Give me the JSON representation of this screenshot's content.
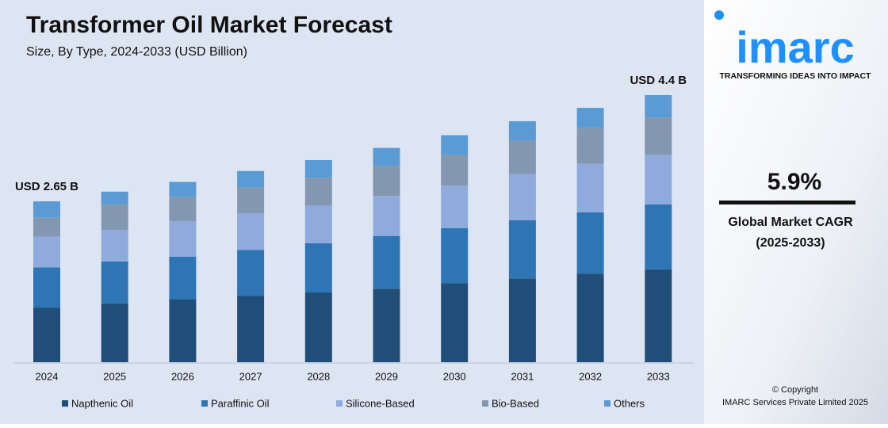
{
  "chart_data": {
    "type": "stacked_bar",
    "title": "Transformer Oil Market Forecast",
    "subtitle": "Size, By Type, 2024-2033 (USD Billion)",
    "categories": [
      "2024",
      "2025",
      "2026",
      "2027",
      "2028",
      "2029",
      "2030",
      "2031",
      "2032",
      "2033"
    ],
    "series": [
      {
        "name": "Napthenic Oil",
        "color": "#1f4e79",
        "values": [
          0.9,
          0.97,
          1.04,
          1.09,
          1.15,
          1.21,
          1.3,
          1.38,
          1.46,
          1.53
        ]
      },
      {
        "name": "Paraffinic Oil",
        "color": "#2e75b6",
        "values": [
          0.66,
          0.69,
          0.7,
          0.76,
          0.81,
          0.87,
          0.91,
          0.96,
          1.01,
          1.07
        ]
      },
      {
        "name": "Silicone-Based",
        "color": "#8faadc",
        "values": [
          0.51,
          0.52,
          0.58,
          0.6,
          0.62,
          0.66,
          0.7,
          0.76,
          0.8,
          0.82
        ]
      },
      {
        "name": "Bio-Based",
        "color": "#8497b0",
        "values": [
          0.31,
          0.42,
          0.4,
          0.43,
          0.46,
          0.49,
          0.51,
          0.55,
          0.59,
          0.61
        ]
      },
      {
        "name": "Others",
        "color": "#5b9bd5",
        "values": [
          0.27,
          0.21,
          0.25,
          0.27,
          0.29,
          0.3,
          0.32,
          0.32,
          0.33,
          0.37
        ]
      }
    ],
    "annotations": [
      "USD 2.65 B",
      "USD 4.4 B"
    ]
  },
  "sidebar": {
    "logo": "imarc",
    "tagline": "TRANSFORMING IDEAS INTO IMPACT",
    "cagr": "5.9%",
    "cagr_label": "Global Market CAGR",
    "cagr_period": "(2025-2033)",
    "copyright": "© Copyright",
    "company": "IMARC Services Private Limited 2025"
  }
}
